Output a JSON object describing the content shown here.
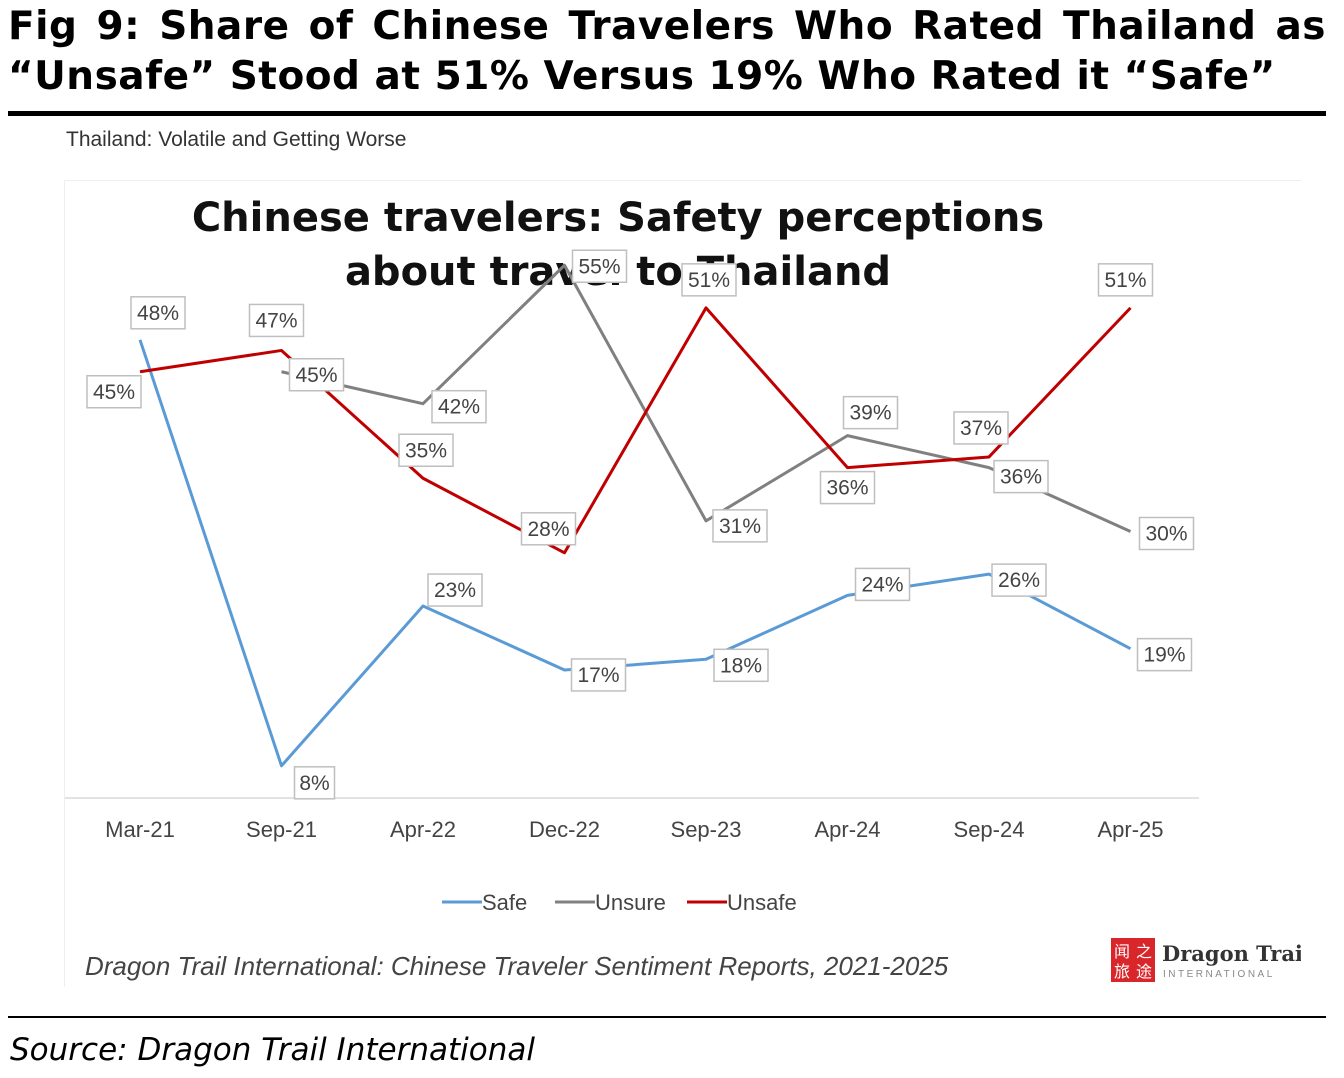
{
  "figure": {
    "title": "Fig 9: Share of Chinese Travelers Who Rated Thailand as “Unsafe” Stood at 51% Versus 19% Who Rated it “Safe”",
    "subtitle": "Thailand: Volatile and Getting Worse",
    "source": "Source: Dragon Trail International"
  },
  "chart_data": {
    "type": "line",
    "title_lines": [
      "Chinese travelers: Safety perceptions",
      "about travel to Thailand"
    ],
    "categories": [
      "Mar-21",
      "Sep-21",
      "Apr-22",
      "Dec-22",
      "Sep-23",
      "Apr-24",
      "Sep-24",
      "Apr-25"
    ],
    "series": [
      {
        "name": "Safe",
        "color": "#5b9bd5",
        "values": [
          48,
          8,
          23,
          17,
          18,
          24,
          26,
          19
        ],
        "labels": [
          "48%",
          "8%",
          "23%",
          "17%",
          "18%",
          "24%",
          "26%",
          "19%"
        ]
      },
      {
        "name": "Unsure",
        "color": "#808080",
        "values": [
          null,
          45,
          42,
          55,
          31,
          39,
          36,
          30
        ],
        "labels": [
          "",
          "45%",
          "42%",
          "55%",
          "31%",
          "39%",
          "36%",
          "30%"
        ]
      },
      {
        "name": "Unsafe",
        "color": "#c00000",
        "values": [
          45,
          47,
          35,
          28,
          51,
          36,
          37,
          51
        ],
        "labels": [
          "45%",
          "47%",
          "35%",
          "28%",
          "51%",
          "36%",
          "37%",
          "51%"
        ]
      }
    ],
    "ylim": [
      0,
      60
    ],
    "grid": false,
    "legend_position": "bottom",
    "source_note": "Dragon Trail International: Chinese Traveler Sentiment Reports, 2021-2025",
    "logo": {
      "name": "Dragon Trail",
      "sub": "INTERNATIONAL",
      "glyphs": [
        "闻",
        "之",
        "旅",
        "途"
      ]
    }
  }
}
